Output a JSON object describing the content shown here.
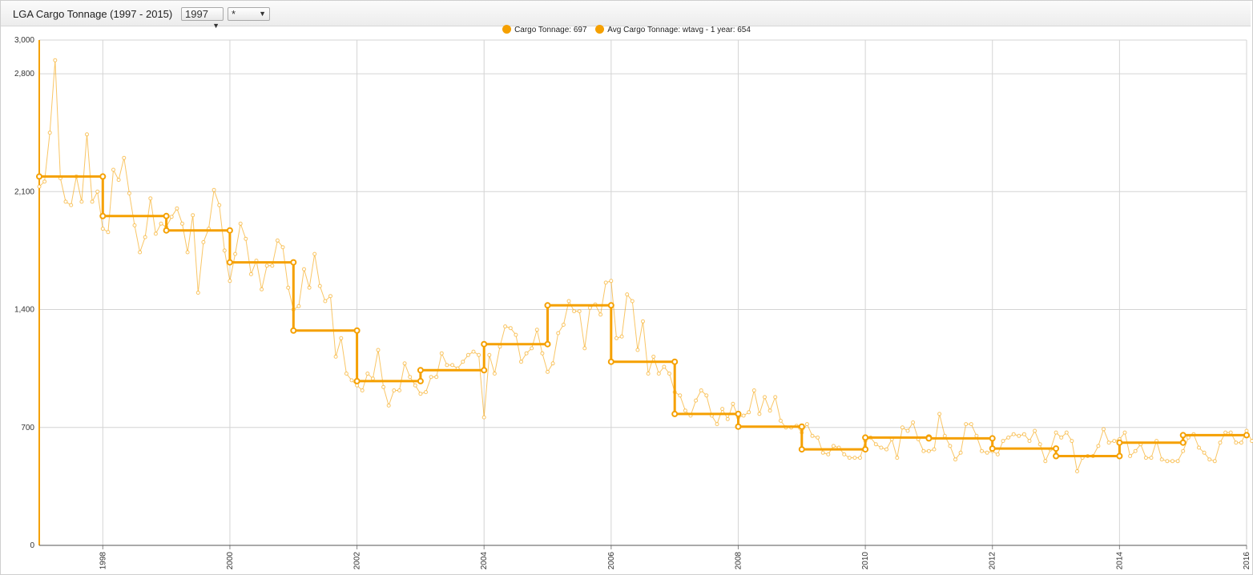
{
  "window": {
    "title": "LGA Cargo Tonnage (1997 - 2015)",
    "year_select": "1997",
    "series_select": "*"
  },
  "legend": {
    "items": [
      {
        "label": "Cargo Tonnage: 697"
      },
      {
        "label": "Avg Cargo Tonnage: wtavg - 1 year: 654"
      }
    ]
  },
  "colors": {
    "series": "#f5a000",
    "grid": "#d4d4d4",
    "axis": "#f5a000"
  },
  "chart_data": {
    "type": "line",
    "title": "LGA Cargo Tonnage (1997 - 2015)",
    "xlim": [
      1997,
      2016
    ],
    "ylim": [
      0,
      3000
    ],
    "x_ticks": [
      "1998",
      "2000",
      "2002",
      "2004",
      "2006",
      "2008",
      "2010",
      "2012",
      "2014",
      "2016"
    ],
    "y_ticks": [
      "0",
      "700",
      "1,400",
      "2,100",
      "2,800",
      "3,000"
    ],
    "grid": true,
    "legend_position": "top-center",
    "series": [
      {
        "name": "Cargo Tonnage",
        "start": "1997-01",
        "interval": "month",
        "values": [
          2130,
          2160,
          2450,
          2880,
          2180,
          2040,
          2020,
          2190,
          2040,
          2440,
          2040,
          2100,
          1880,
          1860,
          2230,
          2170,
          2300,
          2090,
          1900,
          1740,
          1830,
          2060,
          1850,
          1910,
          1890,
          1950,
          2000,
          1910,
          1740,
          1960,
          1500,
          1800,
          1880,
          2110,
          2020,
          1750,
          1570,
          1730,
          1910,
          1820,
          1610,
          1690,
          1520,
          1660,
          1660,
          1810,
          1770,
          1530,
          1400,
          1420,
          1640,
          1530,
          1730,
          1540,
          1450,
          1480,
          1120,
          1230,
          1020,
          980,
          950,
          920,
          1020,
          990,
          1160,
          940,
          830,
          920,
          920,
          1080,
          1000,
          950,
          900,
          910,
          1000,
          1000,
          1140,
          1070,
          1070,
          1050,
          1090,
          1130,
          1150,
          1130,
          760,
          1130,
          1020,
          1180,
          1300,
          1290,
          1250,
          1090,
          1140,
          1170,
          1280,
          1140,
          1030,
          1080,
          1260,
          1310,
          1450,
          1390,
          1390,
          1170,
          1410,
          1430,
          1370,
          1560,
          1570,
          1230,
          1240,
          1490,
          1450,
          1160,
          1330,
          1020,
          1120,
          1020,
          1060,
          1020,
          910,
          890,
          800,
          770,
          860,
          920,
          890,
          770,
          720,
          810,
          750,
          840,
          760,
          770,
          790,
          920,
          780,
          880,
          800,
          880,
          740,
          700,
          700,
          710,
          670,
          720,
          650,
          640,
          550,
          540,
          590,
          580,
          540,
          520,
          520,
          520,
          620,
          640,
          600,
          580,
          570,
          630,
          520,
          700,
          680,
          730,
          630,
          560,
          560,
          570,
          780,
          650,
          590,
          510,
          550,
          720,
          720,
          650,
          560,
          550,
          560,
          540,
          620,
          640,
          660,
          650,
          660,
          620,
          680,
          600,
          500,
          570,
          670,
          640,
          670,
          620,
          440,
          520,
          530,
          530,
          590,
          690,
          610,
          620,
          630,
          670,
          530,
          560,
          600,
          520,
          520,
          620,
          510,
          500,
          500,
          500,
          560,
          640,
          660,
          580,
          550,
          510,
          500,
          610,
          670,
          670,
          610,
          610,
          680,
          620,
          660,
          600,
          520,
          550,
          650,
          740,
          680,
          700,
          700
        ]
      },
      {
        "name": "Avg Cargo Tonnage: wtavg - 1 year",
        "type": "step",
        "annual": [
          {
            "year": 1997,
            "value": 2190
          },
          {
            "year": 1998,
            "value": 1955
          },
          {
            "year": 1999,
            "value": 1870
          },
          {
            "year": 2000,
            "value": 1680
          },
          {
            "year": 2001,
            "value": 1275
          },
          {
            "year": 2002,
            "value": 975
          },
          {
            "year": 2003,
            "value": 1040
          },
          {
            "year": 2004,
            "value": 1195
          },
          {
            "year": 2005,
            "value": 1425
          },
          {
            "year": 2006,
            "value": 1090
          },
          {
            "year": 2007,
            "value": 780
          },
          {
            "year": 2008,
            "value": 705
          },
          {
            "year": 2009,
            "value": 570
          },
          {
            "year": 2010,
            "value": 640
          },
          {
            "year": 2011,
            "value": 635
          },
          {
            "year": 2012,
            "value": 575
          },
          {
            "year": 2013,
            "value": 530
          },
          {
            "year": 2014,
            "value": 610
          },
          {
            "year": 2015,
            "value": 654
          }
        ]
      }
    ]
  }
}
